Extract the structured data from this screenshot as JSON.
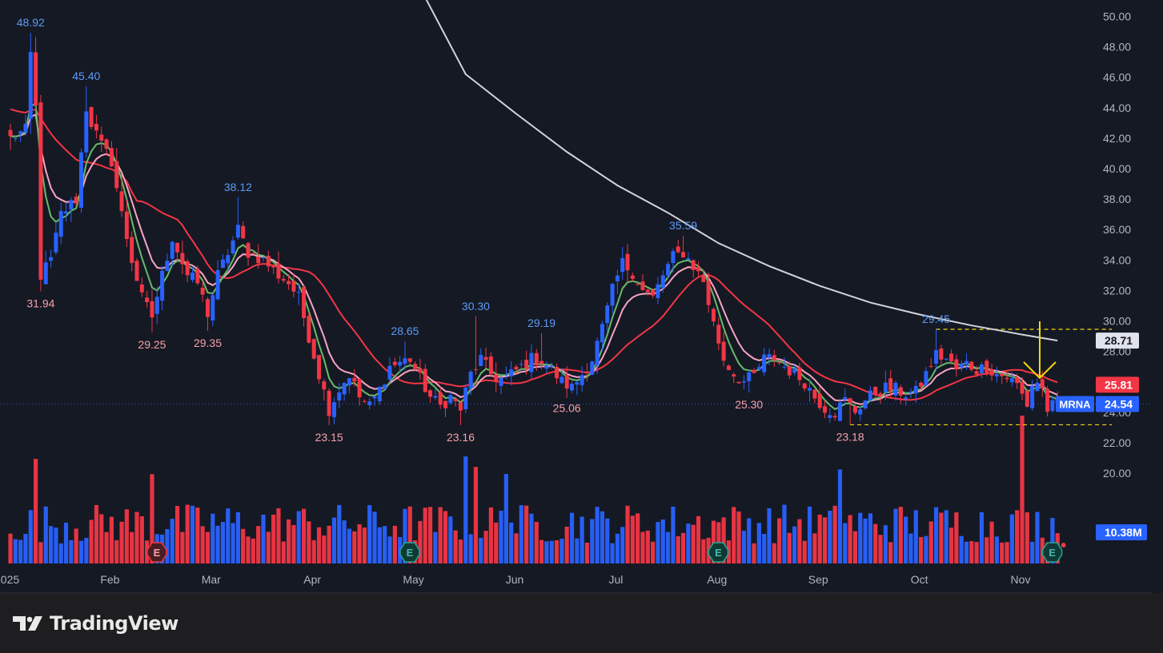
{
  "chart_data": {
    "type": "candlestick",
    "symbol": "MRNA",
    "brand": "TradingView",
    "colors": {
      "background": "#151924",
      "page": "#1e1e20",
      "up": "#2962ff",
      "down": "#f23645",
      "ma_fast": "#66bb6a",
      "ma_pink": "#f8a5c2",
      "ma_red": "#f23645",
      "ma_long": "#d1d4dc",
      "annotation_high": "#5b9cf6",
      "annotation_low": "#f7a1a9",
      "arrow": "#f5d90a",
      "dashed": "#f5d90a",
      "axis_text": "#b2b5be"
    },
    "y_axis": {
      "ylim": [
        20.2,
        51.2
      ],
      "ticks": [
        "20.00",
        "22.00",
        "24.00",
        "26.00",
        "28.00",
        "30.00",
        "32.00",
        "34.00",
        "36.00",
        "38.00",
        "40.00",
        "42.00",
        "44.00",
        "46.00",
        "48.00",
        "50.00"
      ],
      "tick_values": [
        20,
        22,
        24,
        26,
        28,
        30,
        32,
        34,
        36,
        38,
        40,
        42,
        44,
        46,
        48,
        50
      ]
    },
    "x_axis": {
      "labels": [
        "2025",
        "Feb",
        "Mar",
        "Apr",
        "May",
        "Jun",
        "Jul",
        "Aug",
        "Sep",
        "Oct",
        "Nov"
      ],
      "label_bars": [
        0,
        20,
        40,
        60,
        80,
        100,
        120,
        140,
        160,
        180,
        200
      ]
    },
    "price_tags": [
      {
        "value": 28.71,
        "label": "28.71",
        "style": "gray"
      },
      {
        "value": 25.81,
        "label": "25.81",
        "style": "red"
      },
      {
        "value": 24.54,
        "label": "24.54",
        "style": "blue",
        "symbol": "MRNA"
      }
    ],
    "volume_tag": {
      "label": "10.38M"
    },
    "last_price": 24.54,
    "annotations": [
      {
        "bar": 4,
        "price": 48.92,
        "text": "48.92",
        "kind": "high"
      },
      {
        "bar": 15,
        "price": 45.4,
        "text": "45.40",
        "kind": "high"
      },
      {
        "bar": 6,
        "price": 31.94,
        "text": "31.94",
        "kind": "low"
      },
      {
        "bar": 28,
        "price": 29.25,
        "text": "29.25",
        "kind": "low"
      },
      {
        "bar": 39,
        "price": 29.35,
        "text": "29.35",
        "kind": "low"
      },
      {
        "bar": 45,
        "price": 38.12,
        "text": "38.12",
        "kind": "high"
      },
      {
        "bar": 63,
        "price": 23.15,
        "text": "23.15",
        "kind": "low"
      },
      {
        "bar": 78,
        "price": 28.65,
        "text": "28.65",
        "kind": "high"
      },
      {
        "bar": 89,
        "price": 23.16,
        "text": "23.16",
        "kind": "low"
      },
      {
        "bar": 92,
        "price": 30.3,
        "text": "30.30",
        "kind": "high"
      },
      {
        "bar": 105,
        "price": 29.19,
        "text": "29.19",
        "kind": "high"
      },
      {
        "bar": 110,
        "price": 25.06,
        "text": "25.06",
        "kind": "low"
      },
      {
        "bar": 133,
        "price": 35.59,
        "text": "35.59",
        "kind": "high"
      },
      {
        "bar": 146,
        "price": 25.3,
        "text": "25.30",
        "kind": "low"
      },
      {
        "bar": 166,
        "price": 23.18,
        "text": "23.18",
        "kind": "low"
      },
      {
        "bar": 183,
        "price": 29.45,
        "text": "29.45",
        "kind": "high"
      }
    ],
    "dashed_levels": [
      {
        "price": 29.45,
        "from_bar": 183,
        "to_bar": 213
      },
      {
        "price": 23.18,
        "from_bar": 166,
        "to_bar": 213
      }
    ],
    "earnings_markers": [
      {
        "bar": 28,
        "kind": "past-miss",
        "label": "E"
      },
      {
        "bar": 78,
        "kind": "past",
        "label": "E"
      },
      {
        "bar": 139,
        "kind": "past",
        "label": "E"
      },
      {
        "bar": 205,
        "kind": "past",
        "label": "E"
      }
    ],
    "long_ma": [
      {
        "bar": 80,
        "price": 52.5
      },
      {
        "bar": 90,
        "price": 46.2
      },
      {
        "bar": 100,
        "price": 43.6
      },
      {
        "bar": 110,
        "price": 41.1
      },
      {
        "bar": 120,
        "price": 38.9
      },
      {
        "bar": 130,
        "price": 37.1
      },
      {
        "bar": 140,
        "price": 35.1
      },
      {
        "bar": 150,
        "price": 33.6
      },
      {
        "bar": 160,
        "price": 32.3
      },
      {
        "bar": 170,
        "price": 31.2
      },
      {
        "bar": 180,
        "price": 30.4
      },
      {
        "bar": 190,
        "price": 29.7
      },
      {
        "bar": 200,
        "price": 29.1
      },
      {
        "bar": 207,
        "price": 28.71
      }
    ]
  }
}
